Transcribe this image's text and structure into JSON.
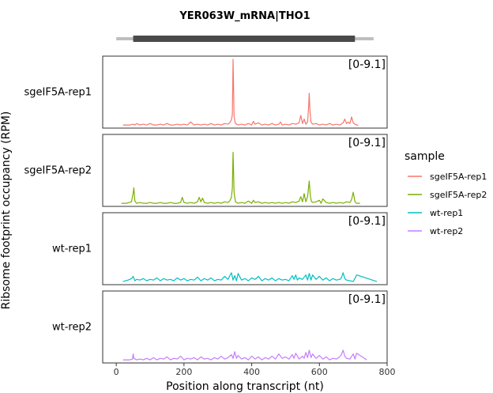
{
  "chart_data": {
    "type": "line",
    "title": "YER063W_mRNA|THO1",
    "xlabel": "Position along transcript (nt)",
    "ylabel": "Ribsome footprint occupancy (RPM)",
    "xlim": [
      -40,
      800
    ],
    "ylim": [
      0,
      9.1
    ],
    "xticks": [
      0,
      200,
      400,
      600,
      800
    ],
    "xtick_labels": [
      "0",
      "200",
      "400",
      "600",
      "800"
    ],
    "gene_model": {
      "transcript": [
        0,
        760
      ],
      "cds": [
        50,
        705
      ],
      "line_color": "#bebebe",
      "cds_color": "#4a4a4a"
    },
    "legend": {
      "title": "sample",
      "placement": "right"
    },
    "series": [
      {
        "name": "sgeIF5A-rep1",
        "panel_label": "sgeIF5A-rep1",
        "range_label": "[0-9.1]",
        "color": "#F8766D",
        "x": [
          20,
          40,
          50,
          55,
          60,
          70,
          80,
          90,
          100,
          110,
          120,
          130,
          140,
          150,
          160,
          170,
          180,
          190,
          200,
          210,
          220,
          230,
          240,
          250,
          260,
          270,
          280,
          290,
          300,
          310,
          320,
          330,
          335,
          340,
          343,
          345,
          348,
          352,
          360,
          370,
          380,
          390,
          400,
          405,
          410,
          420,
          430,
          440,
          450,
          460,
          470,
          480,
          485,
          490,
          500,
          510,
          520,
          530,
          540,
          545,
          550,
          555,
          560,
          565,
          568,
          570,
          572,
          575,
          580,
          590,
          600,
          610,
          620,
          630,
          640,
          650,
          660,
          670,
          675,
          680,
          685,
          690,
          695,
          700,
          705,
          710,
          715
        ],
        "y": [
          0.1,
          0.1,
          0.2,
          0.1,
          0.3,
          0.1,
          0.2,
          0.1,
          0.3,
          0.1,
          0.1,
          0.2,
          0.1,
          0.3,
          0.1,
          0.1,
          0.2,
          0.1,
          0.2,
          0.1,
          0.5,
          0.1,
          0.2,
          0.1,
          0.2,
          0.1,
          0.3,
          0.1,
          0.2,
          0.1,
          0.3,
          0.2,
          0.4,
          0.8,
          1.5,
          9.0,
          1.2,
          0.3,
          0.1,
          0.2,
          0.1,
          0.3,
          0.1,
          0.6,
          0.2,
          0.4,
          0.1,
          0.2,
          0.1,
          0.3,
          0.1,
          0.2,
          0.5,
          0.1,
          0.2,
          0.1,
          0.3,
          0.2,
          0.4,
          1.4,
          0.3,
          0.9,
          0.2,
          0.5,
          2.5,
          4.4,
          2.0,
          0.5,
          0.2,
          0.3,
          0.1,
          0.2,
          0.1,
          0.3,
          0.1,
          0.2,
          0.1,
          0.4,
          0.9,
          0.3,
          0.5,
          0.3,
          1.2,
          0.4,
          0.2,
          0.1,
          0.1
        ]
      },
      {
        "name": "sgeIF5A-rep2",
        "panel_label": "sgeIF5A-rep2",
        "range_label": "[0-9.1]",
        "color": "#7CAE00",
        "x": [
          15,
          30,
          45,
          50,
          52,
          55,
          60,
          70,
          80,
          90,
          100,
          110,
          120,
          130,
          140,
          150,
          160,
          170,
          180,
          190,
          195,
          200,
          210,
          220,
          230,
          240,
          245,
          250,
          255,
          260,
          270,
          280,
          290,
          300,
          310,
          320,
          330,
          335,
          340,
          343,
          345,
          348,
          352,
          360,
          370,
          380,
          390,
          400,
          405,
          410,
          420,
          430,
          440,
          450,
          460,
          470,
          480,
          490,
          500,
          510,
          520,
          530,
          540,
          545,
          550,
          555,
          560,
          565,
          570,
          573,
          576,
          580,
          590,
          600,
          605,
          610,
          620,
          630,
          640,
          650,
          660,
          670,
          680,
          690,
          695,
          700,
          705,
          710,
          720
        ],
        "y": [
          0.1,
          0.1,
          0.3,
          1.5,
          2.2,
          0.4,
          0.1,
          0.2,
          0.1,
          0.1,
          0.2,
          0.1,
          0.1,
          0.2,
          0.1,
          0.1,
          0.2,
          0.1,
          0.1,
          0.2,
          0.9,
          0.2,
          0.1,
          0.2,
          0.1,
          0.3,
          0.9,
          0.3,
          0.8,
          0.2,
          0.1,
          0.2,
          0.1,
          0.2,
          0.1,
          0.3,
          0.2,
          0.4,
          0.9,
          2.2,
          7.0,
          1.5,
          0.3,
          0.1,
          0.2,
          0.1,
          0.4,
          0.1,
          0.5,
          0.2,
          0.3,
          0.1,
          0.2,
          0.1,
          0.2,
          0.1,
          0.2,
          0.1,
          0.2,
          0.1,
          0.3,
          0.2,
          0.4,
          1.0,
          0.3,
          1.4,
          0.3,
          1.0,
          3.1,
          1.2,
          0.4,
          0.2,
          0.3,
          0.5,
          0.1,
          0.7,
          0.2,
          0.1,
          0.2,
          0.1,
          0.2,
          0.1,
          0.3,
          0.2,
          0.6,
          1.6,
          0.3,
          0.1,
          0.1
        ]
      },
      {
        "name": "wt-rep1",
        "panel_label": "wt-rep1",
        "range_label": "[0-9.1]",
        "color": "#00BFC4",
        "x": [
          20,
          35,
          45,
          50,
          55,
          60,
          70,
          80,
          90,
          100,
          110,
          120,
          130,
          140,
          150,
          160,
          170,
          180,
          190,
          200,
          210,
          220,
          230,
          240,
          250,
          260,
          270,
          280,
          290,
          300,
          310,
          320,
          330,
          340,
          345,
          350,
          355,
          360,
          370,
          380,
          390,
          400,
          410,
          420,
          430,
          440,
          450,
          460,
          470,
          480,
          490,
          500,
          510,
          520,
          525,
          530,
          535,
          540,
          550,
          560,
          565,
          570,
          575,
          580,
          590,
          600,
          610,
          620,
          630,
          640,
          650,
          660,
          665,
          670,
          675,
          680,
          690,
          700,
          710,
          770
        ],
        "y": [
          0.1,
          0.3,
          0.5,
          0.8,
          0.2,
          0.4,
          0.3,
          0.5,
          0.2,
          0.4,
          0.3,
          0.6,
          0.2,
          0.5,
          0.3,
          0.4,
          0.2,
          0.6,
          0.3,
          0.5,
          0.2,
          0.4,
          0.3,
          0.7,
          0.2,
          0.5,
          0.3,
          0.6,
          0.2,
          0.4,
          0.3,
          0.8,
          0.4,
          1.3,
          0.3,
          0.9,
          0.2,
          1.2,
          0.3,
          0.5,
          0.2,
          0.6,
          0.4,
          0.8,
          0.2,
          0.5,
          0.3,
          0.6,
          0.2,
          0.5,
          0.3,
          0.4,
          0.2,
          0.9,
          0.4,
          1.0,
          0.3,
          0.6,
          0.4,
          1.0,
          0.3,
          1.2,
          0.3,
          1.0,
          0.4,
          0.8,
          0.3,
          0.6,
          0.2,
          0.5,
          0.3,
          0.4,
          0.6,
          1.3,
          0.5,
          0.3,
          0.2,
          0.1,
          1.0,
          0.1
        ]
      },
      {
        "name": "wt-rep2",
        "panel_label": "wt-rep2",
        "range_label": "[0-9.1]",
        "color": "#C77CFF",
        "x": [
          20,
          40,
          48,
          50,
          52,
          60,
          70,
          80,
          90,
          100,
          110,
          120,
          130,
          140,
          150,
          160,
          170,
          180,
          190,
          200,
          210,
          220,
          230,
          240,
          250,
          260,
          270,
          280,
          290,
          300,
          310,
          320,
          330,
          340,
          345,
          350,
          355,
          360,
          370,
          380,
          390,
          400,
          410,
          420,
          430,
          440,
          450,
          460,
          470,
          480,
          490,
          500,
          510,
          520,
          525,
          530,
          540,
          550,
          555,
          560,
          565,
          570,
          575,
          580,
          590,
          600,
          610,
          620,
          630,
          640,
          650,
          660,
          665,
          670,
          675,
          680,
          690,
          700,
          705,
          710,
          740
        ],
        "y": [
          0.1,
          0.1,
          0.2,
          0.9,
          0.3,
          0.1,
          0.2,
          0.1,
          0.3,
          0.1,
          0.4,
          0.1,
          0.3,
          0.2,
          0.5,
          0.1,
          0.3,
          0.2,
          0.6,
          0.1,
          0.3,
          0.2,
          0.4,
          0.1,
          0.5,
          0.2,
          0.3,
          0.1,
          0.4,
          0.2,
          0.6,
          0.2,
          0.4,
          0.8,
          0.3,
          1.2,
          0.3,
          0.7,
          0.2,
          0.4,
          0.1,
          0.6,
          0.2,
          0.5,
          0.1,
          0.4,
          0.2,
          0.6,
          0.2,
          0.9,
          0.3,
          0.5,
          0.2,
          0.8,
          0.3,
          1.0,
          0.2,
          0.6,
          0.3,
          1.1,
          0.4,
          1.4,
          0.4,
          0.9,
          0.3,
          0.7,
          0.2,
          0.5,
          0.1,
          0.3,
          0.2,
          0.5,
          0.8,
          1.4,
          0.6,
          0.3,
          0.2,
          0.9,
          0.2,
          1.0,
          0.1
        ]
      }
    ]
  }
}
